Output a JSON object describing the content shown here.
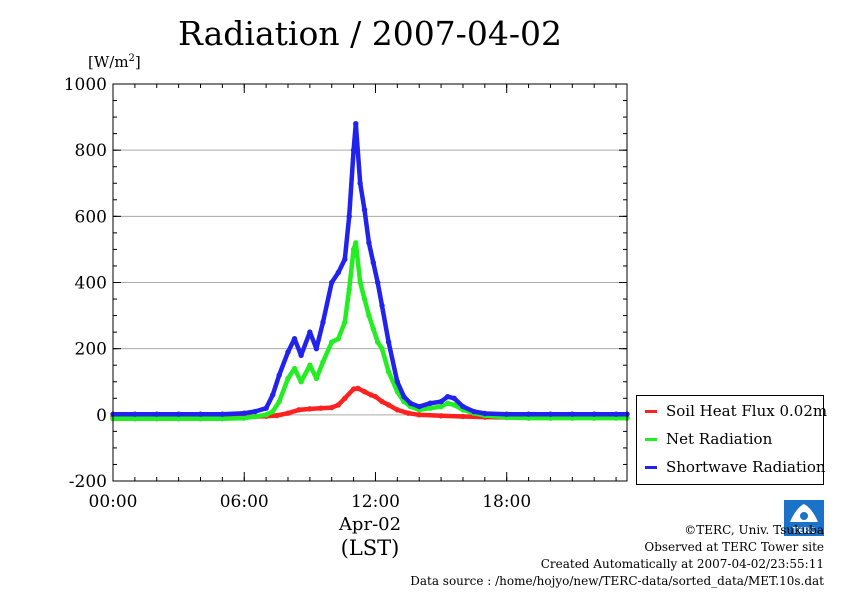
{
  "title": "Radiation / 2007-04-02",
  "unit_label_base": "[W/m",
  "unit_label_sup": "2",
  "unit_label_end": "]",
  "date_label": "Apr-02",
  "time_zone_label": "(LST)",
  "credits": {
    "copyright": "©TERC, Univ. Tsukuba",
    "observed": "Observed at TERC Tower site",
    "created": "Created Automatically at 2007-04-02/23:55:11",
    "source": "Data source : /home/hojyo/new/TERC-data/sorted_data/MET.10s.dat"
  },
  "logo_text": "TERC",
  "colors": {
    "soil": "#ff2020",
    "net": "#22ee22",
    "shortwave": "#2222ee",
    "grid": "#aaaaaa",
    "logo": "#1a73c9"
  },
  "chart_data": {
    "type": "line",
    "x_unit": "hour",
    "x_ticks": [
      0,
      6,
      12,
      18
    ],
    "x_tick_labels": [
      "00:00",
      "06:00",
      "12:00",
      "18:00"
    ],
    "xlim": [
      0,
      23.5
    ],
    "ylim": [
      -200,
      1000
    ],
    "y_ticks": [
      -200,
      0,
      200,
      400,
      600,
      800,
      1000
    ],
    "y_tick_labels": [
      "-200",
      "0",
      "200",
      "400",
      "600",
      "800",
      "1000"
    ],
    "grid": true,
    "legend_position": "right",
    "series": [
      {
        "name": "Soil Heat Flux 0.02m",
        "color_key": "soil",
        "x": [
          0,
          1,
          2,
          3,
          4,
          5,
          6,
          6.5,
          7,
          7.5,
          8,
          8.5,
          9,
          9.5,
          10,
          10.3,
          10.6,
          11,
          11.2,
          11.5,
          11.8,
          12,
          12.3,
          12.6,
          13,
          13.5,
          14,
          15,
          16,
          17,
          18,
          19,
          20,
          21,
          22,
          23,
          23.5
        ],
        "y": [
          -5,
          -5,
          -5,
          -5,
          -5,
          -5,
          -5,
          -5,
          -4,
          -2,
          5,
          15,
          18,
          20,
          22,
          30,
          50,
          78,
          80,
          70,
          60,
          55,
          40,
          30,
          15,
          5,
          0,
          -3,
          -5,
          -7,
          -8,
          -8,
          -8,
          -8,
          -8,
          -8,
          -8
        ]
      },
      {
        "name": "Net Radiation",
        "color_key": "net",
        "x": [
          0,
          1,
          2,
          3,
          4,
          5,
          6,
          6.5,
          7,
          7.3,
          7.6,
          8,
          8.3,
          8.6,
          9,
          9.3,
          9.6,
          10,
          10.3,
          10.6,
          10.8,
          11,
          11.1,
          11.3,
          11.5,
          11.7,
          11.9,
          12.1,
          12.3,
          12.6,
          13,
          13.3,
          13.6,
          14,
          14.5,
          15,
          15.3,
          15.6,
          16,
          16.5,
          17,
          18,
          19,
          20,
          21,
          22,
          23,
          23.5
        ],
        "y": [
          -12,
          -12,
          -12,
          -12,
          -12,
          -12,
          -10,
          -5,
          0,
          10,
          40,
          110,
          140,
          100,
          150,
          110,
          160,
          220,
          230,
          280,
          380,
          500,
          520,
          400,
          350,
          300,
          260,
          220,
          200,
          130,
          70,
          40,
          25,
          15,
          20,
          25,
          35,
          30,
          15,
          5,
          -2,
          -8,
          -10,
          -10,
          -10,
          -10,
          -10,
          -10
        ]
      },
      {
        "name": "Shortwave Radiation",
        "color_key": "shortwave",
        "x": [
          0,
          1,
          2,
          3,
          4,
          5,
          6,
          6.5,
          7,
          7.3,
          7.6,
          8,
          8.3,
          8.6,
          9,
          9.3,
          9.6,
          10,
          10.3,
          10.6,
          10.8,
          11,
          11.1,
          11.3,
          11.5,
          11.7,
          11.9,
          12.1,
          12.3,
          12.6,
          13,
          13.3,
          13.6,
          14,
          14.5,
          15,
          15.3,
          15.6,
          16,
          16.5,
          17,
          18,
          19,
          20,
          21,
          22,
          23,
          23.5
        ],
        "y": [
          2,
          2,
          2,
          2,
          2,
          2,
          5,
          10,
          20,
          60,
          120,
          190,
          230,
          180,
          250,
          200,
          280,
          400,
          430,
          470,
          600,
          800,
          880,
          700,
          620,
          520,
          460,
          400,
          330,
          220,
          100,
          55,
          35,
          25,
          35,
          40,
          55,
          50,
          25,
          10,
          4,
          2,
          2,
          2,
          2,
          2,
          2,
          2
        ]
      }
    ]
  }
}
